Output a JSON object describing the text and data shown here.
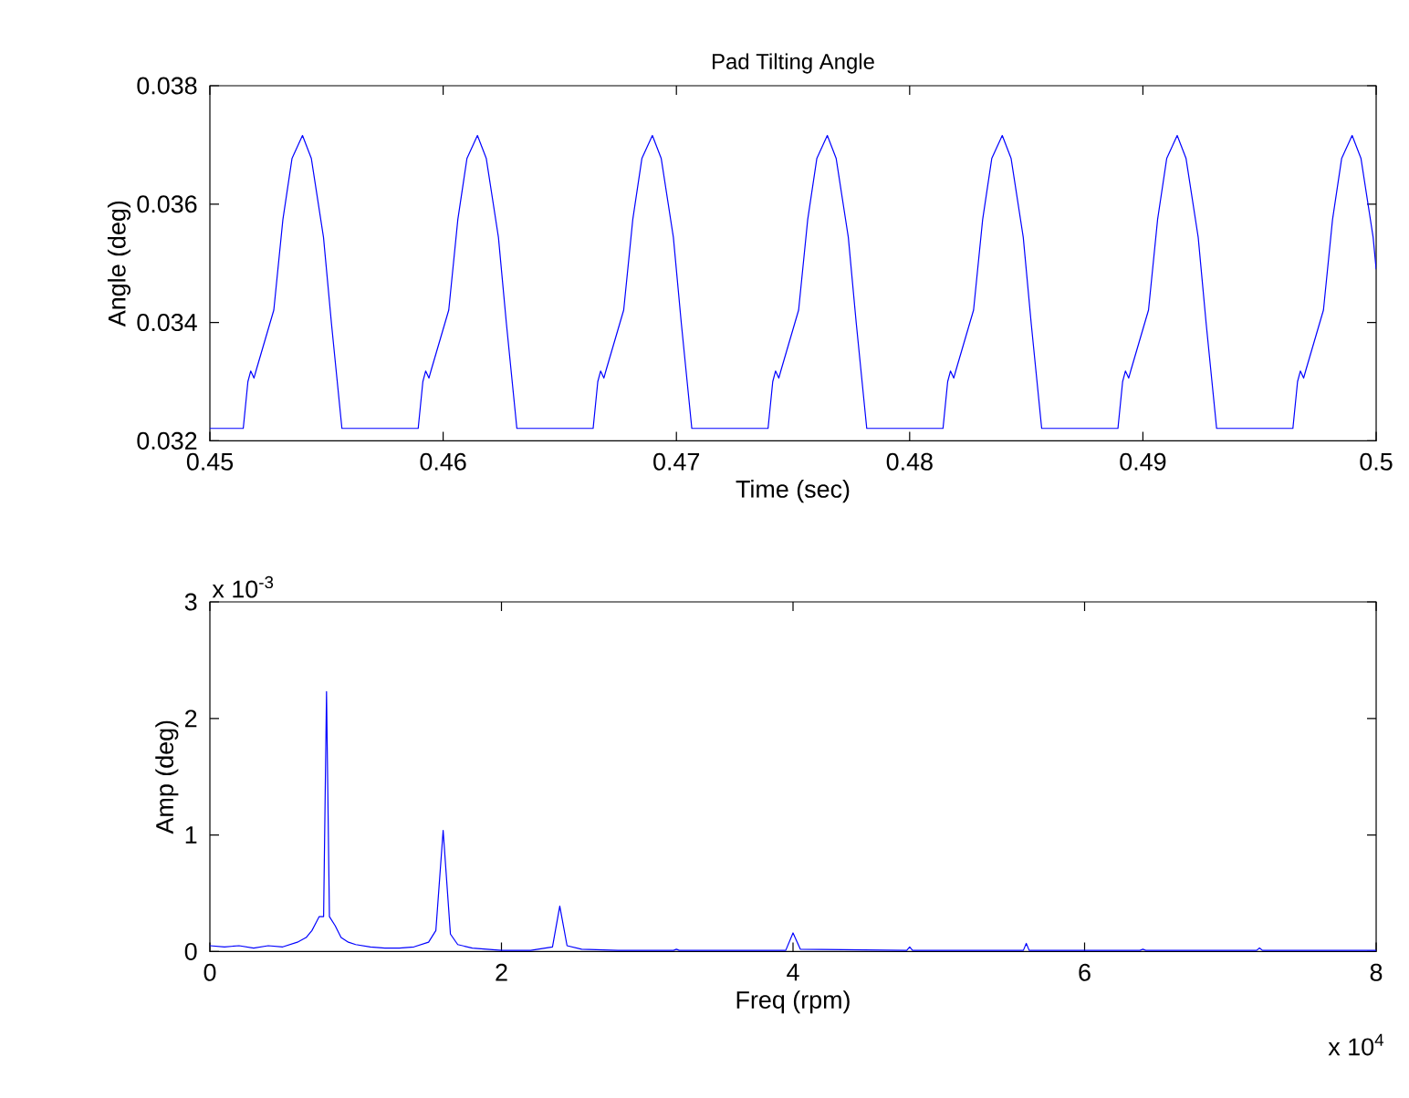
{
  "chart_data": [
    {
      "type": "line",
      "title": "Pad Tilting Angle",
      "xlabel": "Time (sec)",
      "ylabel": "Angle (deg)",
      "xlim": [
        0.45,
        0.5
      ],
      "ylim": [
        0.032,
        0.038
      ],
      "xticks": [
        0.45,
        0.46,
        0.47,
        0.48,
        0.49,
        0.5
      ],
      "yticks": [
        0.032,
        0.034,
        0.036,
        0.038
      ],
      "series": [
        {
          "color": "#0000ff",
          "x": [
            0.45,
            0.45143,
            0.45163,
            0.45175,
            0.45189,
            0.45199,
            0.45274,
            0.45313,
            0.45352,
            0.45397,
            0.45435,
            0.45487,
            0.45521,
            0.45566,
            0.45893,
            0.45913,
            0.45925,
            0.45939,
            0.45949,
            0.46024,
            0.46063,
            0.46102,
            0.46147,
            0.46185,
            0.46237,
            0.46271,
            0.46316,
            0.46643,
            0.46663,
            0.46675,
            0.46689,
            0.46699,
            0.46774,
            0.46813,
            0.46852,
            0.46897,
            0.46935,
            0.46987,
            0.47021,
            0.47066,
            0.47393,
            0.47413,
            0.47425,
            0.47439,
            0.47449,
            0.47524,
            0.47563,
            0.47602,
            0.47647,
            0.47685,
            0.47737,
            0.47771,
            0.47816,
            0.48143,
            0.48163,
            0.48175,
            0.48189,
            0.48199,
            0.48274,
            0.48313,
            0.48352,
            0.48397,
            0.48435,
            0.48487,
            0.48521,
            0.48566,
            0.48893,
            0.48913,
            0.48925,
            0.48939,
            0.48949,
            0.49024,
            0.49063,
            0.49102,
            0.49147,
            0.49185,
            0.49237,
            0.49271,
            0.49316,
            0.49643,
            0.49663,
            0.49675,
            0.49689,
            0.49699,
            0.49774,
            0.49813,
            0.49852,
            0.49897,
            0.49935,
            0.49987,
            0.5
          ],
          "values": [
            0.03221,
            0.03221,
            0.033,
            0.03318,
            0.03306,
            0.0332,
            0.03421,
            0.03574,
            0.03677,
            0.03716,
            0.03677,
            0.03544,
            0.03399,
            0.03221,
            0.03221,
            0.033,
            0.03318,
            0.03306,
            0.0332,
            0.03421,
            0.03574,
            0.03677,
            0.03716,
            0.03677,
            0.03544,
            0.03399,
            0.03221,
            0.03221,
            0.033,
            0.03318,
            0.03306,
            0.0332,
            0.03421,
            0.03574,
            0.03677,
            0.03716,
            0.03677,
            0.03544,
            0.03399,
            0.03221,
            0.03221,
            0.033,
            0.03318,
            0.03306,
            0.0332,
            0.03421,
            0.03574,
            0.03677,
            0.03716,
            0.03677,
            0.03544,
            0.03399,
            0.03221,
            0.03221,
            0.033,
            0.03318,
            0.03306,
            0.0332,
            0.03421,
            0.03574,
            0.03677,
            0.03716,
            0.03677,
            0.03544,
            0.03399,
            0.03221,
            0.03221,
            0.033,
            0.03318,
            0.03306,
            0.0332,
            0.03421,
            0.03574,
            0.03677,
            0.03716,
            0.03677,
            0.03544,
            0.03399,
            0.03221,
            0.03221,
            0.033,
            0.03318,
            0.03306,
            0.0332,
            0.03421,
            0.03574,
            0.03677,
            0.03716,
            0.03677,
            0.03544,
            0.0349
          ]
        }
      ]
    },
    {
      "type": "line",
      "xlabel": "Freq (rpm)",
      "ylabel": "Amp (deg)",
      "xlim": [
        0,
        8
      ],
      "ylim": [
        0,
        3
      ],
      "xticks": [
        0,
        2,
        4,
        6,
        8
      ],
      "yticks": [
        0,
        1,
        2,
        3
      ],
      "annotations": [
        "x 10$^{-3}$",
        "x 10$^{4}$"
      ],
      "series": [
        {
          "color": "#0000ff",
          "x": [
            0,
            0.1,
            0.2,
            0.3,
            0.4,
            0.5,
            0.6,
            0.66,
            0.7,
            0.75,
            0.78,
            0.8,
            0.82,
            0.86,
            0.9,
            0.95,
            1.0,
            1.1,
            1.2,
            1.3,
            1.4,
            1.5,
            1.55,
            1.6,
            1.65,
            1.7,
            1.8,
            2.0,
            2.2,
            2.35,
            2.4,
            2.45,
            2.55,
            2.8,
            3.18,
            3.2,
            3.22,
            3.95,
            4.0,
            4.05,
            4.78,
            4.8,
            4.82,
            5.58,
            5.6,
            5.62,
            6.38,
            6.4,
            6.42,
            7.18,
            7.2,
            7.22,
            8
          ],
          "values": [
            0.05,
            0.04,
            0.05,
            0.03,
            0.05,
            0.04,
            0.08,
            0.12,
            0.18,
            0.3,
            0.3,
            2.23,
            0.3,
            0.22,
            0.12,
            0.08,
            0.06,
            0.04,
            0.03,
            0.03,
            0.04,
            0.08,
            0.18,
            1.04,
            0.15,
            0.06,
            0.03,
            0.01,
            0.01,
            0.04,
            0.39,
            0.05,
            0.02,
            0.01,
            0.01,
            0.02,
            0.01,
            0.01,
            0.16,
            0.02,
            0.01,
            0.04,
            0.01,
            0.01,
            0.07,
            0.01,
            0.01,
            0.02,
            0.01,
            0.01,
            0.03,
            0.01,
            0.01
          ]
        }
      ]
    }
  ]
}
